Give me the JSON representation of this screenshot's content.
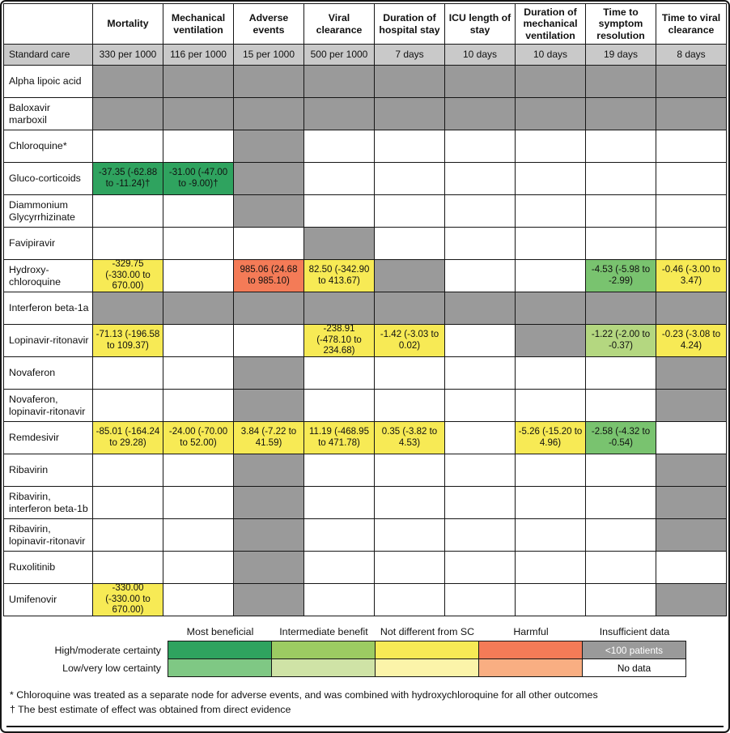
{
  "chart_data": {
    "type": "table",
    "columns": [
      "Mortality",
      "Mechanical ventilation",
      "Adverse events",
      "Viral clearance",
      "Duration of hospital stay",
      "ICU length of stay",
      "Duration of mechanical ventilation",
      "Time to symptom resolution",
      "Time to viral clearance"
    ],
    "standard_care": {
      "label": "Standard care",
      "values": [
        "330 per 1000",
        "116 per 1000",
        "15 per 1000",
        "500 per 1000",
        "7 days",
        "10 days",
        "10 days",
        "19 days",
        "8 days"
      ]
    },
    "rows": [
      {
        "label": "Alpha lipoic acid",
        "cells": [
          {
            "type": "insufficient"
          },
          {
            "type": "insufficient"
          },
          {
            "type": "insufficient"
          },
          {
            "type": "insufficient"
          },
          {
            "type": "insufficient"
          },
          {
            "type": "insufficient"
          },
          {
            "type": "insufficient"
          },
          {
            "type": "insufficient"
          },
          {
            "type": "insufficient"
          }
        ]
      },
      {
        "label": "Baloxavir marboxil",
        "cells": [
          {
            "type": "insufficient"
          },
          {
            "type": "insufficient"
          },
          {
            "type": "insufficient"
          },
          {
            "type": "insufficient"
          },
          {
            "type": "insufficient"
          },
          {
            "type": "insufficient"
          },
          {
            "type": "insufficient"
          },
          {
            "type": "insufficient"
          },
          {
            "type": "insufficient"
          }
        ]
      },
      {
        "label": "Chloroquine*",
        "cells": [
          {
            "type": "nodata"
          },
          {
            "type": "nodata"
          },
          {
            "type": "insufficient"
          },
          {
            "type": "nodata"
          },
          {
            "type": "nodata"
          },
          {
            "type": "nodata"
          },
          {
            "type": "nodata"
          },
          {
            "type": "nodata"
          },
          {
            "type": "nodata"
          }
        ]
      },
      {
        "label": "Gluco-corticoids",
        "cells": [
          {
            "type": "benefit_high",
            "text": "-37.35 (-62.88 to -11.24)†"
          },
          {
            "type": "benefit_high",
            "text": "-31.00 (-47.00 to -9.00)†"
          },
          {
            "type": "insufficient"
          },
          {
            "type": "nodata"
          },
          {
            "type": "nodata"
          },
          {
            "type": "nodata"
          },
          {
            "type": "nodata"
          },
          {
            "type": "nodata"
          },
          {
            "type": "nodata"
          }
        ]
      },
      {
        "label": "Diammonium Glycyrrhizinate",
        "cells": [
          {
            "type": "nodata"
          },
          {
            "type": "nodata"
          },
          {
            "type": "insufficient"
          },
          {
            "type": "nodata"
          },
          {
            "type": "nodata"
          },
          {
            "type": "nodata"
          },
          {
            "type": "nodata"
          },
          {
            "type": "nodata"
          },
          {
            "type": "nodata"
          }
        ]
      },
      {
        "label": "Favipiravir",
        "cells": [
          {
            "type": "nodata"
          },
          {
            "type": "nodata"
          },
          {
            "type": "nodata"
          },
          {
            "type": "insufficient"
          },
          {
            "type": "nodata"
          },
          {
            "type": "nodata"
          },
          {
            "type": "nodata"
          },
          {
            "type": "nodata"
          },
          {
            "type": "nodata"
          }
        ]
      },
      {
        "label": "Hydroxy-chloroquine",
        "cells": [
          {
            "type": "neutral",
            "text": "-329.75 (-330.00 to 670.00)"
          },
          {
            "type": "nodata"
          },
          {
            "type": "harm",
            "text": "985.06 (24.68 to 985.10)"
          },
          {
            "type": "neutral",
            "text": "82.50 (-342.90 to 413.67)"
          },
          {
            "type": "insufficient"
          },
          {
            "type": "nodata"
          },
          {
            "type": "nodata"
          },
          {
            "type": "benefit_med",
            "text": "-4.53 (-5.98 to -2.99)"
          },
          {
            "type": "neutral",
            "text": "-0.46 (-3.00 to 3.47)"
          }
        ]
      },
      {
        "label": "Interferon beta-1a",
        "cells": [
          {
            "type": "insufficient"
          },
          {
            "type": "insufficient"
          },
          {
            "type": "insufficient"
          },
          {
            "type": "insufficient"
          },
          {
            "type": "insufficient"
          },
          {
            "type": "insufficient"
          },
          {
            "type": "insufficient"
          },
          {
            "type": "insufficient"
          },
          {
            "type": "insufficient"
          }
        ]
      },
      {
        "label": "Lopinavir-ritonavir",
        "cells": [
          {
            "type": "neutral",
            "text": "-71.13 (-196.58 to 109.37)"
          },
          {
            "type": "nodata"
          },
          {
            "type": "nodata"
          },
          {
            "type": "neutral",
            "text": "-238.91 (-478.10 to 234.68)"
          },
          {
            "type": "neutral",
            "text": "-1.42 (-3.03 to 0.02)"
          },
          {
            "type": "nodata"
          },
          {
            "type": "insufficient"
          },
          {
            "type": "benefit_low",
            "text": "-1.22 (-2.00 to -0.37)"
          },
          {
            "type": "neutral",
            "text": "-0.23 (-3.08 to 4.24)"
          }
        ]
      },
      {
        "label": "Novaferon",
        "cells": [
          {
            "type": "nodata"
          },
          {
            "type": "nodata"
          },
          {
            "type": "insufficient"
          },
          {
            "type": "nodata"
          },
          {
            "type": "nodata"
          },
          {
            "type": "nodata"
          },
          {
            "type": "nodata"
          },
          {
            "type": "nodata"
          },
          {
            "type": "insufficient"
          }
        ]
      },
      {
        "label": "Novaferon, lopinavir-ritonavir",
        "cells": [
          {
            "type": "nodata"
          },
          {
            "type": "nodata"
          },
          {
            "type": "insufficient"
          },
          {
            "type": "nodata"
          },
          {
            "type": "nodata"
          },
          {
            "type": "nodata"
          },
          {
            "type": "nodata"
          },
          {
            "type": "nodata"
          },
          {
            "type": "insufficient"
          }
        ]
      },
      {
        "label": "Remdesivir",
        "cells": [
          {
            "type": "neutral",
            "text": "-85.01 (-164.24 to 29.28)"
          },
          {
            "type": "neutral",
            "text": "-24.00 (-70.00 to 52.00)"
          },
          {
            "type": "neutral",
            "text": "3.84 (-7.22 to 41.59)"
          },
          {
            "type": "neutral",
            "text": "11.19 (-468.95 to 471.78)"
          },
          {
            "type": "neutral",
            "text": "0.35 (-3.82 to 4.53)"
          },
          {
            "type": "nodata"
          },
          {
            "type": "neutral",
            "text": "-5.26 (-15.20 to 4.96)"
          },
          {
            "type": "benefit_med",
            "text": "-2.58 (-4.32 to -0.54)"
          },
          {
            "type": "nodata"
          }
        ]
      },
      {
        "label": "Ribavirin",
        "cells": [
          {
            "type": "nodata"
          },
          {
            "type": "nodata"
          },
          {
            "type": "insufficient"
          },
          {
            "type": "nodata"
          },
          {
            "type": "nodata"
          },
          {
            "type": "nodata"
          },
          {
            "type": "nodata"
          },
          {
            "type": "nodata"
          },
          {
            "type": "insufficient"
          }
        ]
      },
      {
        "label": "Ribavirin, interferon beta-1b",
        "cells": [
          {
            "type": "nodata"
          },
          {
            "type": "nodata"
          },
          {
            "type": "insufficient"
          },
          {
            "type": "nodata"
          },
          {
            "type": "nodata"
          },
          {
            "type": "nodata"
          },
          {
            "type": "nodata"
          },
          {
            "type": "nodata"
          },
          {
            "type": "insufficient"
          }
        ]
      },
      {
        "label": "Ribavirin, lopinavir-ritonavir",
        "cells": [
          {
            "type": "nodata"
          },
          {
            "type": "nodata"
          },
          {
            "type": "insufficient"
          },
          {
            "type": "nodata"
          },
          {
            "type": "nodata"
          },
          {
            "type": "nodata"
          },
          {
            "type": "nodata"
          },
          {
            "type": "nodata"
          },
          {
            "type": "insufficient"
          }
        ]
      },
      {
        "label": "Ruxolitinib",
        "cells": [
          {
            "type": "nodata"
          },
          {
            "type": "nodata"
          },
          {
            "type": "insufficient"
          },
          {
            "type": "nodata"
          },
          {
            "type": "nodata"
          },
          {
            "type": "nodata"
          },
          {
            "type": "nodata"
          },
          {
            "type": "nodata"
          },
          {
            "type": "nodata"
          }
        ]
      },
      {
        "label": "Umifenovir",
        "cells": [
          {
            "type": "neutral",
            "text": "-330.00 (-330.00 to 670.00)"
          },
          {
            "type": "nodata"
          },
          {
            "type": "insufficient"
          },
          {
            "type": "nodata"
          },
          {
            "type": "nodata"
          },
          {
            "type": "nodata"
          },
          {
            "type": "nodata"
          },
          {
            "type": "nodata"
          },
          {
            "type": "insufficient"
          }
        ]
      }
    ],
    "legend": {
      "categories": [
        "Most beneficial",
        "Intermediate benefit",
        "Not different from SC",
        "Harmful",
        "Insufficient data"
      ],
      "rows": [
        {
          "label": "High/moderate certainty",
          "swatches": [
            {
              "color": "#2FA35F"
            },
            {
              "color": "#9CCB62"
            },
            {
              "color": "#F7EA55"
            },
            {
              "color": "#F47B57"
            },
            {
              "color": "#9A9A9A",
              "text": "<100 patients",
              "text_color": "#FFFFFF"
            }
          ]
        },
        {
          "label": "Low/very low certainty",
          "swatches": [
            {
              "color": "#7FC884"
            },
            {
              "color": "#CFE3A6"
            },
            {
              "color": "#FBF4A9"
            },
            {
              "color": "#F9AE82"
            },
            {
              "color": "#FFFFFF",
              "text": "No data",
              "text_color": "#000000"
            }
          ]
        }
      ]
    }
  },
  "footnotes": [
    "* Chloroquine was treated as a separate node for adverse events, and was combined with hydroxychloroquine for all other outcomes",
    "† The best estimate of effect was obtained from direct evidence"
  ],
  "colors": {
    "grid_line": "#161616",
    "standard_care_bg": "#C9C9C9",
    "cell_palette": {
      "nodata": "#FFFFFF",
      "insufficient": "#9A9A9A",
      "benefit_high": "#2FA35F",
      "benefit_med": "#79C36F",
      "benefit_low": "#B4D780",
      "neutral": "#F7EA55",
      "harm": "#F47B57"
    }
  }
}
